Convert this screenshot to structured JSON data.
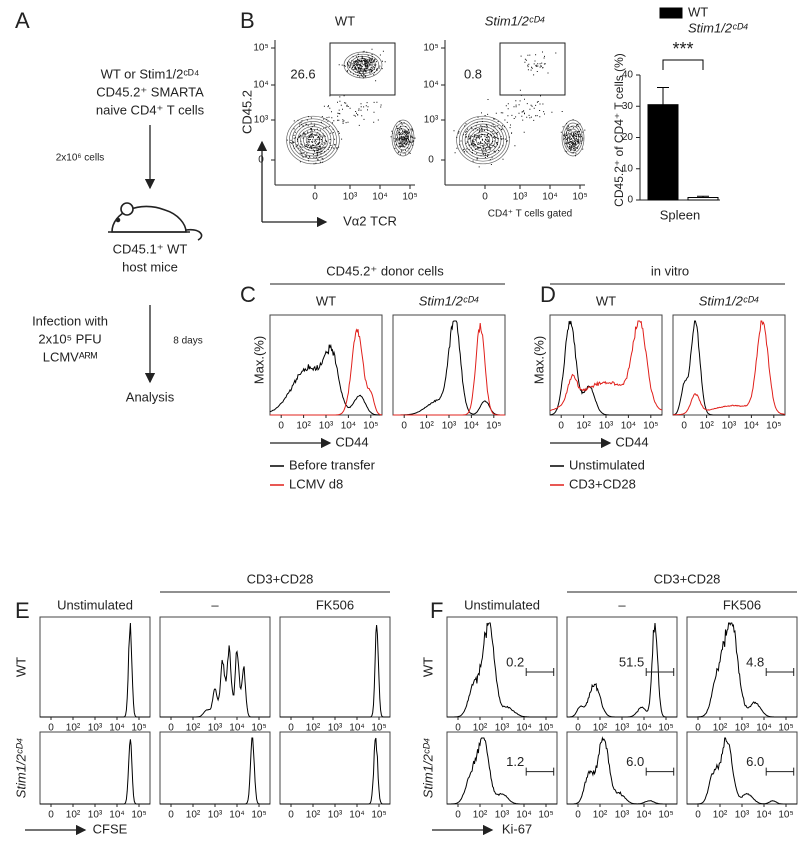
{
  "panel_labels": [
    "A",
    "B",
    "C",
    "D",
    "E",
    "F"
  ],
  "genotypes": [
    "WT",
    "Stim1/2ᶜᴰ⁴"
  ],
  "log_ticks": [
    "0",
    "10²",
    "10³",
    "10⁴",
    "10⁵"
  ],
  "panel_a": {
    "donor": [
      "WT or Stim1/2ᶜᴰ⁴",
      "CD45.2⁺ SMARTA",
      "naive CD4⁺ T cells"
    ],
    "dose": "2x10⁶ cells",
    "host": [
      "CD45.1⁺ WT",
      "host mice"
    ],
    "infection": [
      "Infection with",
      "2x10⁵ PFU",
      "LCMVᴬᴿᴹ"
    ],
    "duration": "8 days",
    "result": "Analysis"
  },
  "panel_b": {
    "y_label": "CD45.2",
    "x_label": "Vα2 TCR",
    "gating": "CD4⁺ T cells gated",
    "gate_values": [
      "26.6",
      "0.8"
    ],
    "y_ticks": [
      "10⁵",
      "10⁴",
      "10³",
      "0"
    ],
    "x_ticks": [
      "0",
      "10³",
      "10⁴",
      "10⁵"
    ]
  },
  "chart_data": {
    "type": "bar",
    "y_label": "CD45.2⁺ of CD4⁺ T cells (%)",
    "categories": [
      "Spleen"
    ],
    "series": [
      {
        "name": "WT",
        "color": "#000000",
        "values": [
          30.5
        ],
        "errors": [
          5.5
        ]
      },
      {
        "name": "Stim1/2ᶜᴰ⁴",
        "color": "#ffffff",
        "values": [
          0.8
        ],
        "errors": [
          0.4
        ]
      }
    ],
    "ylim": [
      0,
      40
    ],
    "yticks": [
      0,
      10,
      20,
      30,
      40
    ],
    "significance": "***"
  },
  "panel_c": {
    "header": "CD45.2⁺ donor cells",
    "y_label": "Max.(%)",
    "x_label": "CD44",
    "legend": [
      {
        "name": "Before transfer",
        "color": "#000000"
      },
      {
        "name": "LCMV d8",
        "color": "#e0201b"
      }
    ]
  },
  "panel_d": {
    "header": "in vitro",
    "y_label": "Max.(%)",
    "x_label": "CD44",
    "legend": [
      {
        "name": "Unstimulated",
        "color": "#000000"
      },
      {
        "name": "CD3+CD28",
        "color": "#e0201b"
      }
    ]
  },
  "panel_e": {
    "group": "CD3+CD28",
    "columns": [
      "Unstimulated",
      "–",
      "FK506"
    ],
    "x_label": "CFSE"
  },
  "panel_f": {
    "group": "CD3+CD28",
    "columns": [
      "Unstimulated",
      "–",
      "FK506"
    ],
    "x_label": "Ki-67",
    "gate_values": [
      [
        "0.2",
        "51.5",
        "4.8"
      ],
      [
        "1.2",
        "6.0",
        "6.0"
      ]
    ]
  }
}
